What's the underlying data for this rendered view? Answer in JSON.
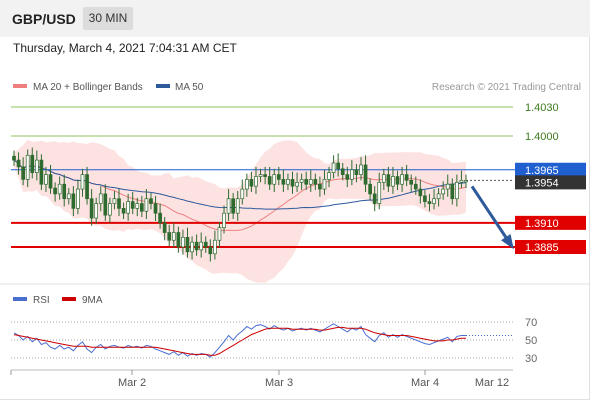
{
  "header": {
    "pair": "GBP/USD",
    "timeframe": "30 MIN",
    "timestamp": "Thursday, March 4, 2021 7:04:31 AM CET"
  },
  "legend": {
    "bollinger": "MA 20 + Bollinger Bands",
    "ma50": "MA 50",
    "credit": "Research © 2021 Trading Central",
    "rsi": "RSI",
    "rsi_ma": "9MA"
  },
  "colors": {
    "bollinger": "#f08080",
    "band_fill": "#fde2e2",
    "ma50": "#2d5a9a",
    "resistance": "#8cc35a",
    "support": "#e00000",
    "current": "#1f5fd0",
    "candle": "#2e6b2e",
    "rsi": "#4a6fd0",
    "rsi_ma": "#cc0000"
  },
  "chart_data": [
    {
      "type": "candlestick",
      "title": "GBP/USD",
      "x_ticks": [
        "Mar 2",
        "Mar 3",
        "Mar 4",
        "Mar 12"
      ],
      "ylim": [
        1.387,
        1.4036
      ],
      "levels": [
        {
          "label": "1.4030",
          "value": 1.403,
          "kind": "resistance"
        },
        {
          "label": "1.4000",
          "value": 1.4,
          "kind": "resistance"
        },
        {
          "label": "1.3965",
          "value": 1.3965,
          "kind": "pivot"
        },
        {
          "label": "1.3954",
          "value": 1.3954,
          "kind": "last"
        },
        {
          "label": "1.3910",
          "value": 1.391,
          "kind": "support"
        },
        {
          "label": "1.3885",
          "value": 1.3885,
          "kind": "support"
        }
      ],
      "close": [
        1.3975,
        1.3968,
        1.3955,
        1.398,
        1.3962,
        1.3975,
        1.395,
        1.396,
        1.3946,
        1.394,
        1.395,
        1.3935,
        1.394,
        1.3925,
        1.3945,
        1.396,
        1.3935,
        1.3915,
        1.393,
        1.394,
        1.3918,
        1.393,
        1.3935,
        1.3925,
        1.392,
        1.3932,
        1.3925,
        1.393,
        1.3922,
        1.3935,
        1.393,
        1.392,
        1.391,
        1.39,
        1.3892,
        1.39,
        1.3885,
        1.3895,
        1.388,
        1.389,
        1.3882,
        1.389,
        1.3885,
        1.3878,
        1.3892,
        1.3905,
        1.392,
        1.3935,
        1.392,
        1.3935,
        1.3945,
        1.3955,
        1.3948,
        1.3958,
        1.396,
        1.3958,
        1.395,
        1.396,
        1.3955,
        1.395,
        1.3955,
        1.3948,
        1.3952,
        1.3955,
        1.395,
        1.3955,
        1.395,
        1.3945,
        1.3955,
        1.3962,
        1.3972,
        1.3966,
        1.396,
        1.3955,
        1.3965,
        1.396,
        1.397,
        1.395,
        1.394,
        1.393,
        1.3952,
        1.396,
        1.3948,
        1.3958,
        1.395,
        1.396,
        1.3954,
        1.395,
        1.3945,
        1.3938,
        1.3932,
        1.393,
        1.3935,
        1.394,
        1.3945,
        1.395,
        1.3935,
        1.3952,
        1.3954,
        1.3954
      ],
      "forecast": {
        "from": 1.3954,
        "to": 1.3885
      }
    },
    {
      "type": "line",
      "title": "RSI",
      "ylim": [
        20,
        80
      ],
      "y_ticks": [
        70,
        50,
        30
      ],
      "series": [
        {
          "name": "RSI",
          "values": [
            58,
            55,
            50,
            54,
            48,
            52,
            45,
            47,
            42,
            40,
            44,
            40,
            42,
            38,
            44,
            48,
            40,
            36,
            42,
            45,
            40,
            43,
            44,
            42,
            41,
            44,
            42,
            43,
            41,
            44,
            43,
            40,
            38,
            36,
            34,
            37,
            33,
            36,
            32,
            35,
            33,
            35,
            34,
            31,
            36,
            42,
            48,
            55,
            50,
            56,
            60,
            65,
            62,
            66,
            67,
            65,
            62,
            66,
            63,
            61,
            63,
            60,
            62,
            63,
            61,
            63,
            61,
            59,
            62,
            65,
            68,
            65,
            62,
            59,
            63,
            61,
            65,
            56,
            52,
            48,
            55,
            58,
            53,
            56,
            53,
            56,
            54,
            52,
            50,
            48,
            46,
            45,
            47,
            49,
            51,
            53,
            48,
            54,
            55,
            55
          ]
        },
        {
          "name": "9MA",
          "values": [
            56,
            55,
            54,
            53,
            52,
            51,
            50,
            49,
            48,
            47,
            46,
            45,
            44,
            43,
            43,
            43,
            43,
            42,
            42,
            42,
            42,
            42,
            42,
            42,
            42,
            42,
            42,
            42,
            42,
            42,
            42,
            42,
            41,
            40,
            39,
            38,
            37,
            36,
            35,
            34,
            34,
            34,
            34,
            33,
            33,
            35,
            38,
            41,
            44,
            47,
            50,
            53,
            56,
            58,
            60,
            62,
            63,
            63,
            63,
            63,
            63,
            62,
            62,
            62,
            62,
            62,
            62,
            61,
            61,
            62,
            63,
            64,
            64,
            63,
            63,
            63,
            63,
            62,
            60,
            58,
            57,
            56,
            55,
            55,
            55,
            55,
            55,
            54,
            53,
            52,
            51,
            50,
            49,
            49,
            49,
            50,
            50,
            51,
            52,
            52
          ]
        }
      ]
    }
  ]
}
